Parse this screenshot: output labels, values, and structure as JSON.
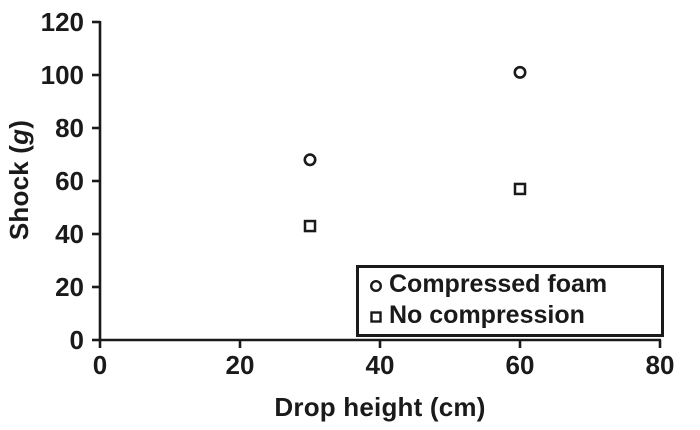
{
  "chart_data": {
    "type": "scatter",
    "title": "",
    "xlabel": "Drop height (cm)",
    "ylabel": "Shock (g)",
    "ylabel_parts": [
      "Shock (",
      "g",
      ")"
    ],
    "xlim": [
      0,
      80
    ],
    "ylim": [
      0,
      120
    ],
    "xticks": [
      0,
      20,
      40,
      60,
      80
    ],
    "yticks": [
      0,
      20,
      40,
      60,
      80,
      100,
      120
    ],
    "grid": false,
    "legend_position": "lower right",
    "series": [
      {
        "name": "Compressed foam",
        "marker": "circle",
        "x": [
          30,
          60
        ],
        "y": [
          68,
          101
        ]
      },
      {
        "name": "No compression",
        "marker": "square",
        "x": [
          30,
          60
        ],
        "y": [
          43,
          57
        ]
      }
    ]
  },
  "colors": {
    "axis": "#1a1a1a",
    "marker_stroke": "#1a1a1a",
    "background": "#ffffff"
  }
}
